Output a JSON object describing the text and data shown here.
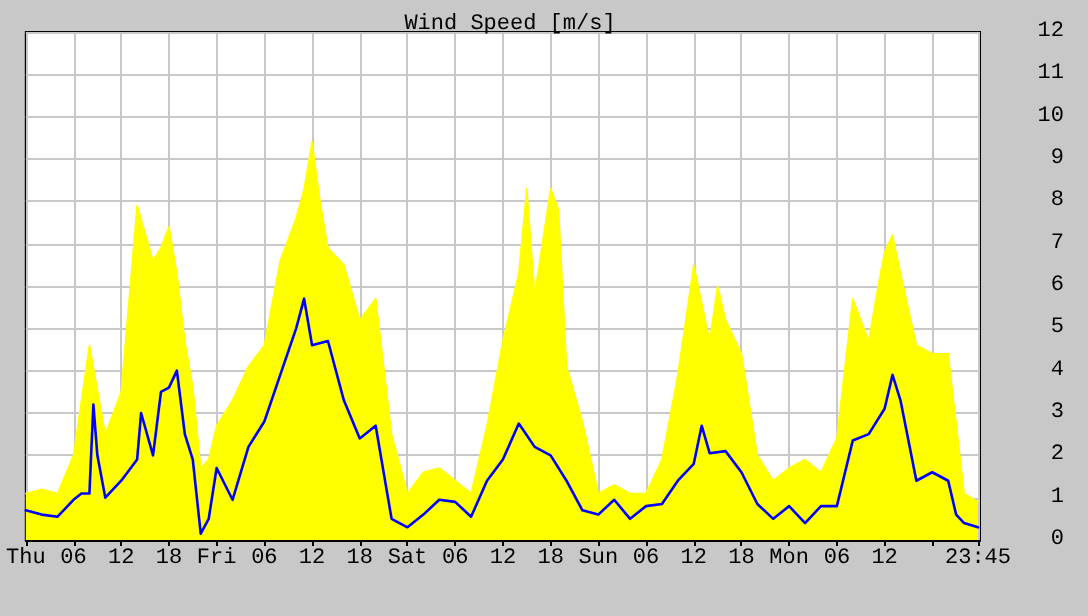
{
  "chart_data": {
    "type": "line",
    "title": "Wind Speed [m/s]",
    "grid": true,
    "marker": "none",
    "xlim": [
      "--01-04T00:00",
      "--01-09T00:00"
    ],
    "xticks": [
      {
        "value": "--01-04T00:00",
        "label": "Thu"
      },
      {
        "value": "--01-04T06:00",
        "label": "06"
      },
      {
        "value": "--01-04T12:00",
        "label": "12"
      },
      {
        "value": "--01-04T18:00",
        "label": "18"
      },
      {
        "value": "--01-05T00:00",
        "label": "Fri"
      },
      {
        "value": "--01-05T06:00",
        "label": "06"
      },
      {
        "value": "--01-05T12:00",
        "label": "12"
      },
      {
        "value": "--01-05T18:00",
        "label": "18"
      },
      {
        "value": "--01-06T00:00",
        "label": "Sat"
      },
      {
        "value": "--01-06T06:00",
        "label": "06"
      },
      {
        "value": "--01-06T12:00",
        "label": "12"
      },
      {
        "value": "--01-06T18:00",
        "label": "18"
      },
      {
        "value": "--01-07T00:00",
        "label": "Sun"
      },
      {
        "value": "--01-07T06:00",
        "label": "06"
      },
      {
        "value": "--01-07T12:00",
        "label": "12"
      },
      {
        "value": "--01-07T18:00",
        "label": "18"
      },
      {
        "value": "--01-08T00:00",
        "label": "Mon"
      },
      {
        "value": "--01-08T06:00",
        "label": "06"
      },
      {
        "value": "--01-08T12:00",
        "label": "12"
      },
      {
        "value": "--01-08T18:00",
        "label": null
      },
      {
        "value": "--01-08T23:45",
        "label": "23:45"
      }
    ],
    "ylim": [
      0,
      12
    ],
    "yticks": [
      0,
      1,
      2,
      3,
      4,
      5,
      6,
      7,
      8,
      9,
      10,
      11,
      12
    ],
    "series": [
      {
        "type": "area",
        "color": "#ffff00",
        "x": [
          "--01-04T00:00",
          "--01-04T02:00",
          "--01-04T04:00",
          "--01-04T06:00",
          "--01-04T08:00",
          "--01-04T10:00",
          "--01-04T12:00",
          "--01-04T14:00",
          "--01-04T16:00",
          "--01-04T17:00",
          "--01-04T18:00",
          "--01-04T19:00",
          "--01-04T20:00",
          "--01-04T21:00",
          "--01-04T22:00",
          "--01-04T23:00",
          "--01-05T00:00",
          "--01-05T02:00",
          "--01-05T04:00",
          "--01-05T06:00",
          "--01-05T08:00",
          "--01-05T10:00",
          "--01-05T11:00",
          "--01-05T12:00",
          "--01-05T13:00",
          "--01-05T14:00",
          "--01-05T16:00",
          "--01-05T18:00",
          "--01-05T20:00",
          "--01-05T22:00",
          "--01-06T00:00",
          "--01-06T02:00",
          "--01-06T04:00",
          "--01-06T06:00",
          "--01-06T08:00",
          "--01-06T10:00",
          "--01-06T12:00",
          "--01-06T14:00",
          "--01-06T15:00",
          "--01-06T16:00",
          "--01-06T18:00",
          "--01-06T19:00",
          "--01-06T20:00",
          "--01-06T22:00",
          "--01-07T00:00",
          "--01-07T02:00",
          "--01-07T04:00",
          "--01-07T06:00",
          "--01-07T08:00",
          "--01-07T10:00",
          "--01-07T12:00",
          "--01-07T14:00",
          "--01-07T15:00",
          "--01-07T16:00",
          "--01-07T18:00",
          "--01-07T20:00",
          "--01-07T22:00",
          "--01-08T00:00",
          "--01-08T02:00",
          "--01-08T04:00",
          "--01-08T06:00",
          "--01-08T08:00",
          "--01-08T10:00",
          "--01-08T11:00",
          "--01-08T12:00",
          "--01-08T13:00",
          "--01-08T14:00",
          "--01-08T16:00",
          "--01-08T18:00",
          "--01-08T20:00",
          "--01-08T22:00",
          "--01-08T23:45"
        ],
        "values": [
          1.1,
          1.2,
          1.1,
          2.0,
          4.6,
          2.5,
          3.5,
          7.9,
          6.6,
          6.9,
          7.4,
          6.3,
          4.7,
          3.6,
          1.7,
          1.9,
          2.7,
          3.3,
          4.1,
          4.6,
          6.6,
          7.6,
          8.3,
          9.4,
          8.0,
          6.9,
          6.5,
          5.2,
          5.7,
          2.5,
          1.1,
          1.6,
          1.7,
          1.4,
          1.1,
          2.7,
          4.7,
          6.3,
          8.3,
          5.8,
          8.3,
          7.8,
          4.1,
          2.8,
          1.1,
          1.3,
          1.1,
          1.1,
          1.9,
          3.9,
          6.5,
          4.7,
          6.0,
          5.2,
          4.4,
          2.0,
          1.4,
          1.7,
          1.9,
          1.6,
          2.4,
          5.7,
          4.7,
          5.8,
          6.8,
          7.2,
          6.3,
          4.6,
          4.4,
          4.4,
          1.1,
          0.9
        ]
      },
      {
        "color": "#0000ff",
        "x": [
          "--01-04T00:00",
          "--01-04T02:00",
          "--01-04T04:00",
          "--01-04T06:00",
          "--01-04T07:00",
          "--01-04T08:00",
          "--01-04T08:30",
          "--01-04T09:00",
          "--01-04T10:00",
          "--01-04T12:00",
          "--01-04T14:00",
          "--01-04T14:30",
          "--01-04T16:00",
          "--01-04T17:00",
          "--01-04T18:00",
          "--01-04T19:00",
          "--01-04T20:00",
          "--01-04T21:00",
          "--01-04T22:00",
          "--01-04T23:00",
          "--01-05T00:00",
          "--01-05T02:00",
          "--01-05T04:00",
          "--01-05T06:00",
          "--01-05T08:00",
          "--01-05T10:00",
          "--01-05T11:00",
          "--01-05T12:00",
          "--01-05T14:00",
          "--01-05T16:00",
          "--01-05T18:00",
          "--01-05T20:00",
          "--01-05T22:00",
          "--01-06T00:00",
          "--01-06T02:00",
          "--01-06T04:00",
          "--01-06T06:00",
          "--01-06T08:00",
          "--01-06T10:00",
          "--01-06T12:00",
          "--01-06T14:00",
          "--01-06T16:00",
          "--01-06T18:00",
          "--01-06T20:00",
          "--01-06T22:00",
          "--01-07T00:00",
          "--01-07T02:00",
          "--01-07T04:00",
          "--01-07T06:00",
          "--01-07T08:00",
          "--01-07T10:00",
          "--01-07T12:00",
          "--01-07T13:00",
          "--01-07T14:00",
          "--01-07T16:00",
          "--01-07T18:00",
          "--01-07T20:00",
          "--01-07T22:00",
          "--01-08T00:00",
          "--01-08T02:00",
          "--01-08T04:00",
          "--01-08T06:00",
          "--01-08T08:00",
          "--01-08T10:00",
          "--01-08T12:00",
          "--01-08T13:00",
          "--01-08T14:00",
          "--01-08T16:00",
          "--01-08T18:00",
          "--01-08T20:00",
          "--01-08T21:00",
          "--01-08T22:00",
          "--01-08T23:45"
        ],
        "values": [
          0.7,
          0.6,
          0.55,
          0.95,
          1.1,
          1.1,
          3.2,
          2.0,
          1.0,
          1.4,
          1.9,
          3.0,
          2.0,
          3.5,
          3.6,
          4.0,
          2.5,
          1.9,
          0.15,
          0.5,
          1.7,
          0.95,
          2.2,
          2.8,
          3.9,
          5.0,
          5.7,
          4.6,
          4.7,
          3.3,
          2.4,
          2.7,
          0.5,
          0.3,
          0.6,
          0.95,
          0.9,
          0.55,
          1.4,
          1.9,
          2.75,
          2.2,
          2.0,
          1.4,
          0.7,
          0.6,
          0.95,
          0.5,
          0.8,
          0.85,
          1.4,
          1.8,
          2.7,
          2.05,
          2.1,
          1.6,
          0.85,
          0.5,
          0.8,
          0.4,
          0.8,
          0.8,
          2.35,
          2.5,
          3.1,
          3.9,
          3.3,
          1.4,
          1.6,
          1.4,
          0.6,
          0.4,
          0.3
        ]
      }
    ]
  }
}
